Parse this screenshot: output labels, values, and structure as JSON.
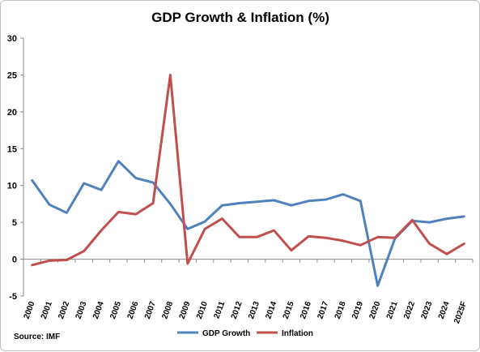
{
  "chart_data": {
    "type": "line",
    "title": "GDP Growth & Inflation (%)",
    "source": "Source: IMF",
    "x": [
      "2000",
      "2001",
      "2002",
      "2003",
      "2004",
      "2005",
      "2006",
      "2007",
      "2008",
      "2009",
      "2010",
      "2011",
      "2012",
      "2013",
      "2014",
      "2015",
      "2016",
      "2017",
      "2018",
      "2019",
      "2020",
      "2021",
      "2022",
      "2023",
      "2024",
      "2025F"
    ],
    "ylim": [
      -5,
      30
    ],
    "yticks": [
      -5,
      0,
      5,
      10,
      15,
      20,
      25,
      30
    ],
    "legend_position": "bottom",
    "grid": false,
    "series": [
      {
        "name": "GDP Growth",
        "color": "#4f81bd",
        "values": [
          10.7,
          7.4,
          6.3,
          10.3,
          9.4,
          13.3,
          11.0,
          10.4,
          7.5,
          4.1,
          5.1,
          7.3,
          7.6,
          7.8,
          8.0,
          7.3,
          7.9,
          8.1,
          8.8,
          7.9,
          -3.6,
          2.8,
          5.2,
          5.0,
          5.5,
          5.8
        ]
      },
      {
        "name": "Inflation",
        "color": "#c0504d",
        "values": [
          -0.8,
          -0.2,
          -0.1,
          1.1,
          3.9,
          6.4,
          6.1,
          7.6,
          25.0,
          -0.6,
          4.1,
          5.5,
          3.0,
          3.0,
          3.9,
          1.2,
          3.1,
          2.9,
          2.5,
          1.9,
          3.0,
          2.9,
          5.3,
          2.1,
          0.7,
          2.1
        ]
      }
    ]
  }
}
